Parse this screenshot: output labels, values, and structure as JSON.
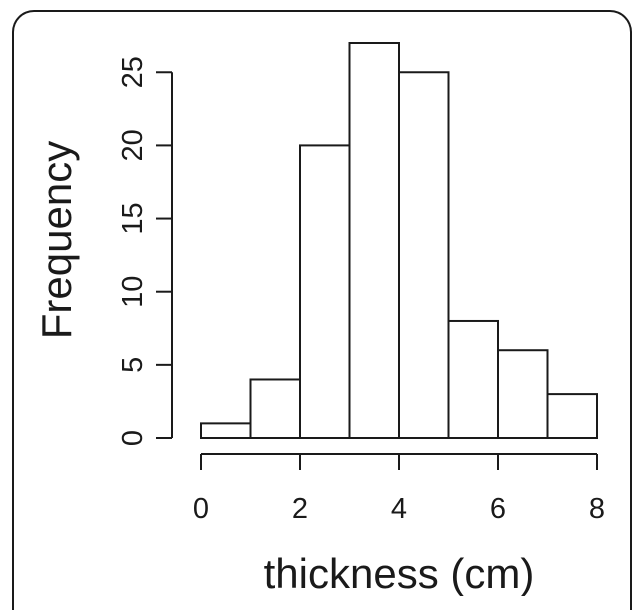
{
  "chart_data": {
    "type": "bar",
    "subtype": "histogram",
    "title": "",
    "xlabel": "thickness (cm)",
    "ylabel": "Frequency",
    "bins": [
      {
        "from": 0,
        "to": 1,
        "count": 1
      },
      {
        "from": 1,
        "to": 2,
        "count": 4
      },
      {
        "from": 2,
        "to": 3,
        "count": 20
      },
      {
        "from": 3,
        "to": 4,
        "count": 27
      },
      {
        "from": 4,
        "to": 5,
        "count": 25
      },
      {
        "from": 5,
        "to": 6,
        "count": 8
      },
      {
        "from": 6,
        "to": 7,
        "count": 6
      },
      {
        "from": 7,
        "to": 8,
        "count": 3
      }
    ],
    "xticks": [
      0,
      2,
      4,
      6,
      8
    ],
    "yticks": [
      0,
      5,
      10,
      15,
      20,
      25
    ],
    "xlim": [
      0,
      8
    ],
    "ylim": [
      0,
      27
    ],
    "grid": false,
    "legend": "none",
    "colors": {
      "bar_fill": "#ffffff",
      "bar_stroke": "#1a1a1a",
      "axis": "#1a1a1a",
      "frame": "#1a1a1a"
    }
  }
}
